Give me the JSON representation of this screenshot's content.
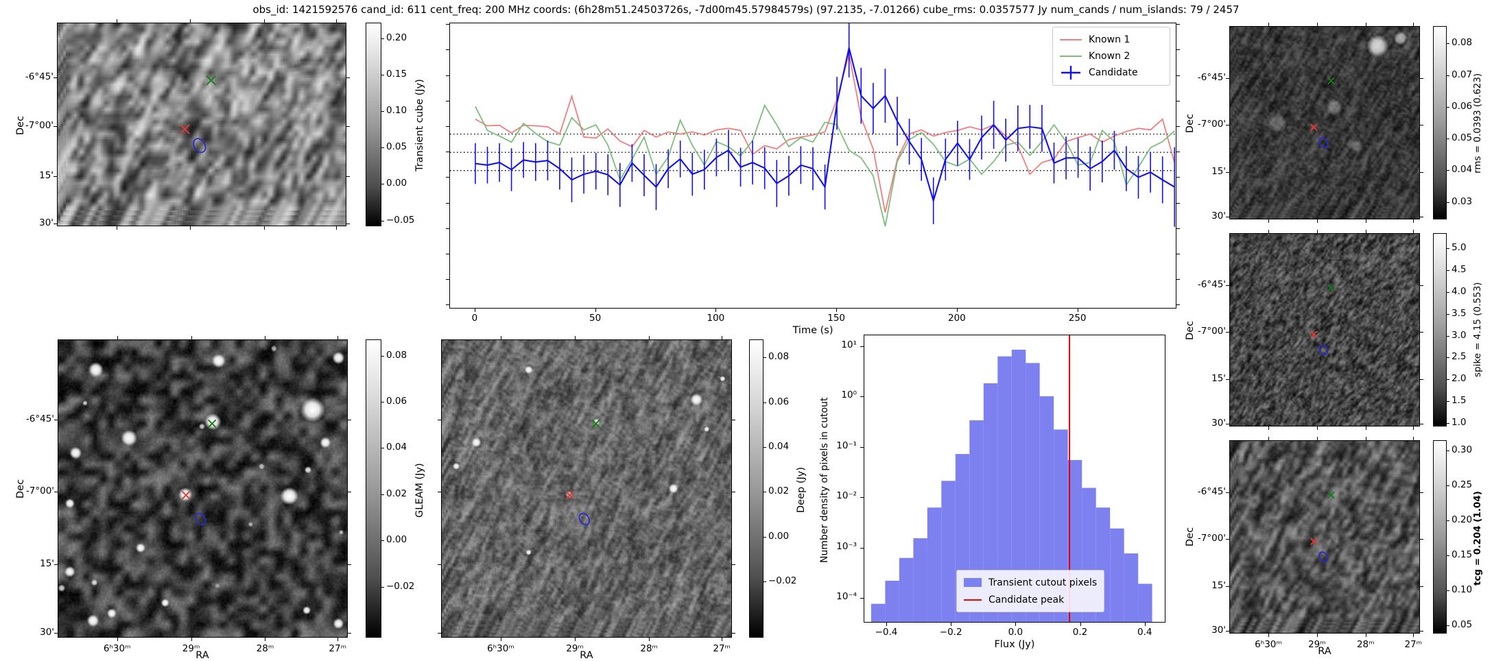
{
  "title": "obs_id: 1421592576 cand_id: 611 cent_freq: 200 MHz coords: (6h28m51.24503726s, -7d00m45.57984579s) (97.2135, -7.01266) cube_rms: 0.0357577 Jy num_cands / num_islands: 79 / 2457",
  "axes": {
    "dec_label": "Dec",
    "ra_label": "RA",
    "dec_ticks": [
      "-6°45'",
      "-7°00'",
      "15'",
      "30'"
    ],
    "ra_ticks": [
      "6ʰ30ᵐ",
      "29ᵐ",
      "28ᵐ",
      "27ᵐ"
    ]
  },
  "colorbars": {
    "transient": {
      "label": "Transient cube (Jy)",
      "tick_labels": [
        "0.20",
        "0.15",
        "0.10",
        "0.05",
        "0.00",
        "−0.05"
      ],
      "tick_values": [
        0.2,
        0.15,
        0.1,
        0.05,
        0.0,
        -0.05
      ],
      "vmax": 0.222,
      "vmin": -0.058
    },
    "gleam": {
      "label": "GLEAM (Jy)",
      "tick_labels": [
        "0.08",
        "0.06",
        "0.04",
        "0.02",
        "0.00",
        "−0.02"
      ],
      "tick_values": [
        0.08,
        0.06,
        0.04,
        0.02,
        0.0,
        -0.02
      ],
      "vmax": 0.087,
      "vmin": -0.042
    },
    "deep": {
      "label": "Deep (Jy)",
      "tick_labels": [
        "0.08",
        "0.06",
        "0.04",
        "0.02",
        "0.00",
        "−0.02"
      ],
      "tick_values": [
        0.08,
        0.06,
        0.04,
        0.02,
        0.0,
        -0.02
      ],
      "vmax": 0.088,
      "vmin": -0.045
    },
    "rms": {
      "label": "rms = 0.0393 (0.623)",
      "tick_labels": [
        "0.08",
        "0.07",
        "0.06",
        "0.05",
        "0.04",
        "0.03"
      ],
      "tick_values": [
        0.08,
        0.07,
        0.06,
        0.05,
        0.04,
        0.03
      ],
      "vmax": 0.0855,
      "vmin": 0.0245
    },
    "spike": {
      "label": "spike = 4.15 (0.553)",
      "tick_labels": [
        "5.0",
        "4.5",
        "4.0",
        "3.5",
        "3.0",
        "2.5",
        "2.0",
        "1.5",
        "1.0"
      ],
      "tick_values": [
        5.0,
        4.5,
        4.0,
        3.5,
        3.0,
        2.5,
        2.0,
        1.5,
        1.0
      ],
      "vmax": 5.35,
      "vmin": 0.92
    },
    "tcg": {
      "label": "tcg = 0.204 (1.04)",
      "bold": true,
      "tick_labels": [
        "0.30",
        "0.25",
        "0.20",
        "0.15",
        "0.10",
        "0.05"
      ],
      "tick_values": [
        0.3,
        0.25,
        0.2,
        0.15,
        0.1,
        0.05
      ],
      "vmax": 0.315,
      "vmin": 0.038
    }
  },
  "markers": {
    "known1": {
      "symbol": "x",
      "color": "#e03b33",
      "fx": 0.44,
      "fy": 0.52
    },
    "known2": {
      "symbol": "x",
      "color": "#177d17",
      "fx": 0.53,
      "fy": 0.28
    },
    "candidate": {
      "symbol": "contour-ellipse",
      "color": "#2a2ace",
      "fx": 0.49,
      "fy": 0.6
    }
  },
  "panels": {
    "lightcurve": {
      "xlabel": "Time (s)",
      "xtick_labels": [
        "0",
        "50",
        "100",
        "150",
        "200",
        "250"
      ],
      "legend": [
        "Known 1",
        "Known 2",
        "Candidate"
      ]
    },
    "histogram": {
      "xlabel": "Flux (Jy)",
      "ylabel": "Number density of pixels in cutout",
      "xtick_labels": [
        "−0.4",
        "−0.2",
        "0.0",
        "0.2",
        "0.4"
      ],
      "ytick_labels": [
        "10¹",
        "10⁰",
        "10⁻¹",
        "10⁻²",
        "10⁻³",
        "10⁻⁴"
      ],
      "ytick_exponents": [
        1,
        0,
        -1,
        -2,
        -3,
        -4
      ],
      "legend": [
        "Transient cutout pixels",
        "Candidate peak"
      ]
    }
  },
  "chart_data": [
    {
      "type": "line",
      "title": "Candidate light curve",
      "xlabel": "Time (s)",
      "ylabel": "",
      "xlim": [
        -10.5,
        290.5
      ],
      "ylim": [
        -0.305,
        0.253
      ],
      "xticks": [
        0,
        50,
        100,
        150,
        200,
        250
      ],
      "grid": false,
      "legend_position": "upper right",
      "hlines_dotted": [
        0.0357577,
        0.0,
        -0.0357577
      ],
      "cube_rms_jy": 0.0357577,
      "x": [
        0,
        5,
        10,
        15,
        20,
        25,
        30,
        35,
        40,
        45,
        50,
        55,
        60,
        65,
        70,
        75,
        80,
        85,
        90,
        95,
        100,
        105,
        110,
        115,
        120,
        125,
        130,
        135,
        140,
        145,
        150,
        155,
        160,
        165,
        170,
        175,
        180,
        185,
        190,
        195,
        200,
        205,
        210,
        215,
        220,
        225,
        230,
        235,
        240,
        245,
        250,
        255,
        260,
        265,
        270,
        275,
        280,
        285,
        290
      ],
      "series": [
        {
          "name": "Known 1",
          "color": "#f47d7d",
          "values": [
            0.065,
            0.052,
            0.053,
            0.038,
            0.053,
            0.052,
            0.05,
            0.036,
            0.11,
            0.03,
            0.028,
            0.046,
            0.022,
            0.011,
            0.043,
            0.03,
            0.04,
            0.036,
            0.04,
            0.034,
            0.044,
            0.047,
            0.043,
            -0.004,
            0.013,
            0.007,
            0.025,
            0.03,
            0.034,
            0.04,
            0.104,
            0.193,
            0.068,
            0.007,
            -0.118,
            -0.014,
            0.036,
            0.044,
            0.032,
            0.039,
            0.043,
            0.05,
            0.044,
            0.054,
            0.032,
            0.013,
            -0.043,
            -0.02,
            -0.013,
            0.021,
            0.029,
            0.036,
            0.02,
            0.032,
            0.041,
            0.047,
            0.044,
            0.065,
            -0.021
          ]
        },
        {
          "name": "Known 2",
          "color": "#7cbf7c",
          "values": [
            0.09,
            0.043,
            0.032,
            0.02,
            0.057,
            0.037,
            0.021,
            0.014,
            0.068,
            0.044,
            0.054,
            0.014,
            -0.054,
            -0.014,
            0.03,
            -0.043,
            -0.009,
            0.063,
            0.014,
            -0.025,
            0.021,
            0.011,
            -0.007,
            0.023,
            0.092,
            0.054,
            0.011,
            0.029,
            0.02,
            0.059,
            0.054,
            0.004,
            -0.011,
            -0.046,
            -0.145,
            -0.018,
            0.025,
            0.039,
            0.016,
            -0.018,
            -0.027,
            -0.013,
            -0.043,
            -0.018,
            0.014,
            0.02,
            -0.006,
            0.021,
            0.054,
            0.021,
            -0.025,
            -0.02,
            0.043,
            0.021,
            -0.064,
            -0.029,
            0.009,
            0.021,
            0.042
          ]
        },
        {
          "name": "Candidate",
          "color": "#1111ee",
          "values": [
            -0.022,
            -0.025,
            -0.02,
            -0.034,
            -0.015,
            -0.019,
            -0.016,
            -0.032,
            -0.054,
            -0.043,
            -0.037,
            -0.044,
            -0.064,
            -0.021,
            -0.045,
            -0.068,
            -0.032,
            -0.013,
            -0.043,
            -0.034,
            -0.01,
            0.004,
            -0.029,
            -0.02,
            -0.031,
            -0.061,
            -0.046,
            -0.025,
            -0.032,
            -0.068,
            0.096,
            0.205,
            0.111,
            0.086,
            0.111,
            0.061,
            0.021,
            -0.014,
            -0.095,
            -0.014,
            0.018,
            -0.014,
            0.029,
            0.054,
            0.024,
            0.047,
            0.05,
            0.047,
            -0.021,
            -0.011,
            -0.011,
            -0.032,
            -0.018,
            0.004,
            -0.032,
            -0.049,
            -0.039,
            -0.054,
            -0.068
          ],
          "errors": [
            0.04,
            0.036,
            0.038,
            0.042,
            0.035,
            0.037,
            0.039,
            0.041,
            0.044,
            0.038,
            0.036,
            0.04,
            0.043,
            0.037,
            0.041,
            0.045,
            0.038,
            0.036,
            0.042,
            0.039,
            0.037,
            0.04,
            0.038,
            0.043,
            0.041,
            0.046,
            0.039,
            0.037,
            0.042,
            0.044,
            0.052,
            0.058,
            0.055,
            0.05,
            0.053,
            0.048,
            0.045,
            0.042,
            0.046,
            0.041,
            0.044,
            0.04,
            0.043,
            0.047,
            0.042,
            0.045,
            0.043,
            0.046,
            0.04,
            0.042,
            0.039,
            0.043,
            0.041,
            0.038,
            0.044,
            0.042,
            0.04,
            0.046,
            0.078
          ]
        }
      ]
    },
    {
      "type": "bar",
      "title": "Flux histogram of transient cutout pixels",
      "xlabel": "Flux (Jy)",
      "ylabel": "Number density of pixels in cutout",
      "yscale": "log",
      "xlim": [
        -0.47,
        0.46
      ],
      "ylim": [
        3.5e-05,
        17
      ],
      "xticks": [
        -0.4,
        -0.2,
        0.0,
        0.2,
        0.4
      ],
      "fill_color": "#7d81f0",
      "bin_start": -0.449,
      "bin_width": 0.0435,
      "densities": [
        8e-05,
        0.00023,
        0.00065,
        0.0016,
        0.0065,
        0.022,
        0.075,
        0.35,
        1.9,
        6.5,
        8.8,
        4.8,
        1.05,
        0.23,
        0.057,
        0.016,
        0.0065,
        0.0025,
        0.0008,
        0.0002
      ],
      "vline": {
        "label": "Candidate peak",
        "x": 0.165,
        "color": "#e60000"
      }
    }
  ]
}
